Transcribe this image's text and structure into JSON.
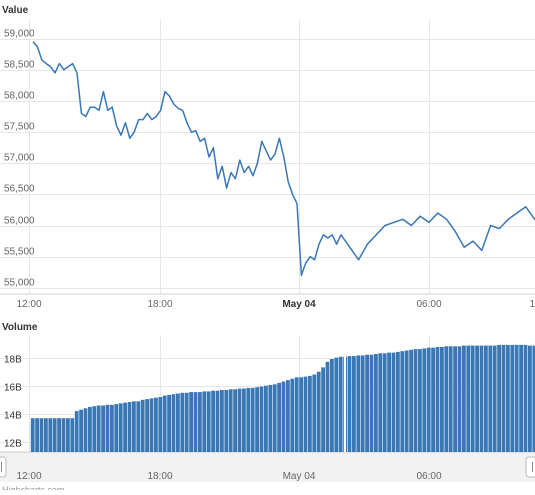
{
  "chart_data": [
    {
      "type": "line",
      "title": "Value",
      "xlabel": "",
      "ylabel": "",
      "x_ticks": [
        "12:00",
        "18:00",
        "May 04",
        "06:00",
        "1"
      ],
      "y_ticks": [
        "59,000",
        "58,500",
        "58,000",
        "57,500",
        "57,000",
        "56,500",
        "56,000",
        "55,500",
        "55,000"
      ],
      "ylim": [
        54900,
        59300
      ],
      "xlim": [
        0,
        24.4
      ],
      "grid": true,
      "series_color": "#3a77b5",
      "x_hours": [
        0,
        0.2,
        0.4,
        0.6,
        0.8,
        1.0,
        1.2,
        1.4,
        1.6,
        1.8,
        2.0,
        2.2,
        2.4,
        2.6,
        2.8,
        3.0,
        3.2,
        3.4,
        3.6,
        3.8,
        4.0,
        4.2,
        4.4,
        4.6,
        4.8,
        5.0,
        5.2,
        5.4,
        5.6,
        5.8,
        6.0,
        6.2,
        6.4,
        6.6,
        6.8,
        7.0,
        7.2,
        7.4,
        7.6,
        7.8,
        8.0,
        8.2,
        8.4,
        8.6,
        8.8,
        9.0,
        9.2,
        9.4,
        9.6,
        9.8,
        10.0,
        10.2,
        10.4,
        10.6,
        10.8,
        11.0,
        11.2,
        11.4,
        11.6,
        11.8,
        12.0,
        12.2,
        12.4,
        12.6,
        12.8,
        13.0,
        13.2,
        13.4,
        13.6,
        13.8,
        14.0,
        14.4,
        14.8,
        15.2,
        15.6,
        16.0,
        16.4,
        16.8,
        17.2,
        17.6,
        18.0,
        18.4,
        18.8,
        19.2,
        19.6,
        20.0,
        20.4,
        20.8,
        21.2,
        21.6,
        22.0,
        22.4,
        22.8,
        23.2,
        23.6,
        24.0,
        24.4
      ],
      "values": [
        58950,
        58870,
        58660,
        58600,
        58550,
        58450,
        58600,
        58500,
        58550,
        58600,
        58450,
        57800,
        57750,
        57900,
        57900,
        57850,
        58150,
        57850,
        57900,
        57600,
        57450,
        57650,
        57400,
        57500,
        57700,
        57700,
        57800,
        57700,
        57750,
        57850,
        58150,
        58080,
        57950,
        57880,
        57850,
        57650,
        57500,
        57520,
        57350,
        57400,
        57100,
        57250,
        56750,
        56950,
        56600,
        56850,
        56750,
        57050,
        56850,
        56950,
        56800,
        57000,
        57350,
        57200,
        57050,
        57150,
        57400,
        57100,
        56700,
        56500,
        56350,
        55200,
        55400,
        55500,
        55450,
        55700,
        55850,
        55800,
        55850,
        55700,
        55850,
        55650,
        55450,
        55700,
        55850,
        56000,
        56050,
        56100,
        56000,
        56150,
        56050,
        56200,
        56100,
        55900,
        55650,
        55750,
        55600,
        56000,
        55950,
        56100,
        56200,
        56300,
        56100,
        56250,
        56400,
        56200,
        56000
      ]
    },
    {
      "type": "bar",
      "title": "Volume",
      "xlabel": "",
      "ylabel": "",
      "x_ticks": [
        "12:00",
        "18:00",
        "May 04",
        "06:00"
      ],
      "y_ticks": [
        "18B",
        "16B",
        "14B",
        "12B"
      ],
      "ylim": [
        11.3,
        19.6
      ],
      "grid": true,
      "bar_color": "#3a77b5",
      "x_hours_start": 0,
      "x_hours_step": 0.2,
      "values": [
        13.7,
        13.7,
        13.7,
        13.7,
        13.7,
        13.7,
        13.7,
        13.7,
        13.7,
        13.7,
        14.2,
        14.3,
        14.4,
        14.5,
        14.55,
        14.6,
        14.6,
        14.65,
        14.65,
        14.7,
        14.75,
        14.8,
        14.85,
        14.9,
        14.9,
        15.0,
        15.05,
        15.1,
        15.15,
        15.2,
        15.3,
        15.35,
        15.4,
        15.45,
        15.5,
        15.5,
        15.55,
        15.55,
        15.55,
        15.6,
        15.6,
        15.65,
        15.65,
        15.7,
        15.7,
        15.75,
        15.75,
        15.8,
        15.8,
        15.85,
        15.85,
        15.9,
        15.95,
        16.0,
        16.05,
        16.1,
        16.2,
        16.3,
        16.4,
        16.5,
        16.6,
        16.6,
        16.65,
        16.7,
        16.8,
        17.0,
        17.3,
        17.7,
        17.9,
        18.0,
        18.05,
        18.05,
        18.1,
        18.1,
        18.15,
        18.15,
        18.2,
        18.2,
        18.25,
        18.3,
        18.3,
        18.35,
        18.35,
        18.4,
        18.45,
        18.5,
        18.55,
        18.6,
        18.6,
        18.65,
        18.7,
        18.7,
        18.75,
        18.75,
        18.8,
        18.8,
        18.8,
        18.8,
        18.85,
        18.85,
        18.85,
        18.85,
        18.85,
        18.85,
        18.85,
        18.85,
        18.9,
        18.9,
        18.9,
        18.9,
        18.9,
        18.9,
        18.9,
        18.85,
        18.85,
        18.6,
        18.6,
        18.55,
        18.55,
        18.55,
        18.5,
        18.5,
        18.5,
        18.5,
        18.5,
        18.55,
        18.6,
        18.6,
        18.6
      ]
    }
  ],
  "navigator": {
    "left_handle_icon": "navigator-left-handle",
    "right_handle_icon": "navigator-right-handle"
  },
  "footer_fragment": "Highcharts.com"
}
